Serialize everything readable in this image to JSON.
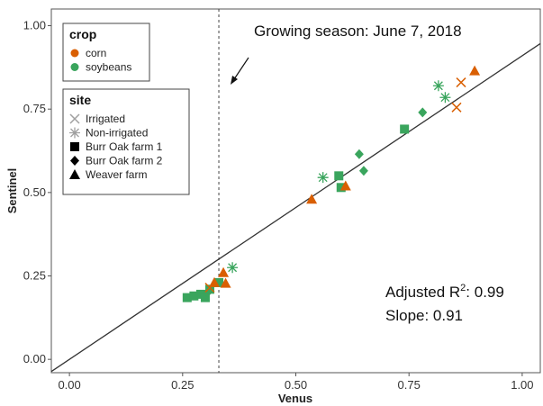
{
  "chart_data": {
    "type": "scatter",
    "xlabel": "Venus",
    "ylabel": "Sentinel",
    "xlim": [
      -0.04,
      1.04
    ],
    "ylim": [
      -0.04,
      1.05
    ],
    "xticks": [
      "0.00",
      "0.25",
      "0.50",
      "0.75",
      "1.00"
    ],
    "yticks": [
      "0.00",
      "0.25",
      "0.50",
      "0.75",
      "1.00"
    ],
    "xtick_values": [
      0,
      0.25,
      0.5,
      0.75,
      1.0
    ],
    "ytick_values": [
      0,
      0.25,
      0.5,
      0.75,
      1.0
    ],
    "grid": false,
    "colors": {
      "corn": "#d95f02",
      "soybeans": "#3aa55d",
      "gray": "#a0a0a0",
      "line": "#333333"
    },
    "legend_crop": {
      "title": "crop",
      "items": [
        {
          "label": "corn",
          "key": "corn"
        },
        {
          "label": "soybeans",
          "key": "soybeans"
        }
      ]
    },
    "legend_site": {
      "title": "site",
      "items": [
        {
          "label": "Irrigated",
          "shape": "x"
        },
        {
          "label": "Non-irrigated",
          "shape": "star"
        },
        {
          "label": "Burr Oak farm 1",
          "shape": "square"
        },
        {
          "label": "Burr Oak farm 2",
          "shape": "diamond"
        },
        {
          "label": "Weaver farm",
          "shape": "triangle"
        }
      ]
    },
    "vline": {
      "x": 0.33,
      "label": "Growing season: June 7, 2018"
    },
    "fit": {
      "slope": 0.91,
      "intercept": 0.0,
      "x_range": [
        -0.04,
        1.04
      ]
    },
    "annotations": {
      "r2_prefix": "Adjusted R",
      "r2_sup": "2",
      "r2_value": ": 0.99",
      "slope": "Slope: 0.91"
    },
    "points": [
      {
        "x": 0.26,
        "y": 0.185,
        "crop": "soybeans",
        "shape": "square"
      },
      {
        "x": 0.275,
        "y": 0.19,
        "crop": "soybeans",
        "shape": "square"
      },
      {
        "x": 0.29,
        "y": 0.195,
        "crop": "soybeans",
        "shape": "square"
      },
      {
        "x": 0.3,
        "y": 0.185,
        "crop": "soybeans",
        "shape": "square"
      },
      {
        "x": 0.305,
        "y": 0.2,
        "crop": "soybeans",
        "shape": "diamond"
      },
      {
        "x": 0.31,
        "y": 0.21,
        "crop": "soybeans",
        "shape": "square"
      },
      {
        "x": 0.33,
        "y": 0.23,
        "crop": "soybeans",
        "shape": "square"
      },
      {
        "x": 0.31,
        "y": 0.215,
        "crop": "corn",
        "shape": "x"
      },
      {
        "x": 0.32,
        "y": 0.23,
        "crop": "corn",
        "shape": "triangle"
      },
      {
        "x": 0.34,
        "y": 0.26,
        "crop": "corn",
        "shape": "triangle"
      },
      {
        "x": 0.345,
        "y": 0.228,
        "crop": "corn",
        "shape": "triangle"
      },
      {
        "x": 0.36,
        "y": 0.275,
        "crop": "soybeans",
        "shape": "star"
      },
      {
        "x": 0.535,
        "y": 0.48,
        "crop": "corn",
        "shape": "triangle"
      },
      {
        "x": 0.56,
        "y": 0.545,
        "crop": "soybeans",
        "shape": "star"
      },
      {
        "x": 0.595,
        "y": 0.55,
        "crop": "soybeans",
        "shape": "square"
      },
      {
        "x": 0.6,
        "y": 0.515,
        "crop": "soybeans",
        "shape": "square"
      },
      {
        "x": 0.61,
        "y": 0.52,
        "crop": "corn",
        "shape": "triangle"
      },
      {
        "x": 0.64,
        "y": 0.615,
        "crop": "soybeans",
        "shape": "diamond"
      },
      {
        "x": 0.65,
        "y": 0.565,
        "crop": "soybeans",
        "shape": "diamond"
      },
      {
        "x": 0.74,
        "y": 0.69,
        "crop": "soybeans",
        "shape": "square"
      },
      {
        "x": 0.78,
        "y": 0.74,
        "crop": "soybeans",
        "shape": "diamond"
      },
      {
        "x": 0.815,
        "y": 0.82,
        "crop": "soybeans",
        "shape": "star"
      },
      {
        "x": 0.83,
        "y": 0.785,
        "crop": "soybeans",
        "shape": "star"
      },
      {
        "x": 0.855,
        "y": 0.755,
        "crop": "corn",
        "shape": "x"
      },
      {
        "x": 0.865,
        "y": 0.83,
        "crop": "corn",
        "shape": "x"
      },
      {
        "x": 0.895,
        "y": 0.865,
        "crop": "corn",
        "shape": "triangle"
      }
    ]
  }
}
